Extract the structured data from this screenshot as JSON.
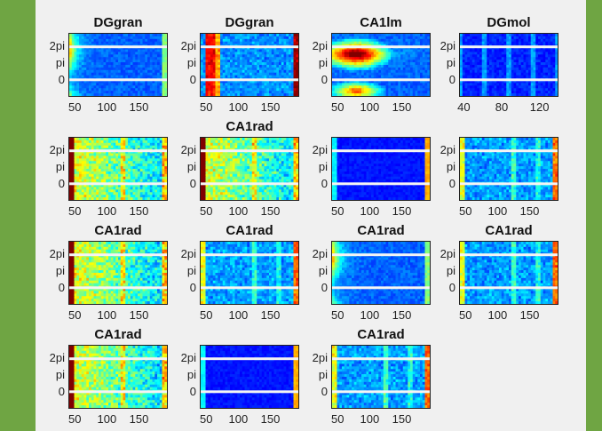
{
  "chart_data": [
    {
      "type": "heatmap",
      "title": "DGgran",
      "yticks": [
        "2pi",
        "pi",
        "0"
      ],
      "xticks": [
        "50",
        "100",
        "150"
      ],
      "xlim": [
        40,
        195
      ],
      "pattern": "left"
    },
    {
      "type": "heatmap",
      "title": "DGgran",
      "yticks": [
        "2pi",
        "pi",
        "0"
      ],
      "xticks": [
        "50",
        "100",
        "150"
      ],
      "xlim": [
        40,
        195
      ],
      "pattern": "stripes"
    },
    {
      "type": "heatmap",
      "title": "CA1lm",
      "yticks": [
        "2pi",
        "pi",
        "0"
      ],
      "xticks": [
        "50",
        "100",
        "150"
      ],
      "xlim": [
        40,
        195
      ],
      "pattern": "blob"
    },
    {
      "type": "heatmap",
      "title": "DGmol",
      "yticks": [
        "2pi",
        "pi",
        "0"
      ],
      "xticks": [
        "40",
        "80",
        "120"
      ],
      "xlim": [
        35,
        140
      ],
      "pattern": "faint"
    },
    {
      "type": "heatmap",
      "title": "",
      "yticks": [
        "2pi",
        "pi",
        "0"
      ],
      "xticks": [
        "50",
        "100",
        "150"
      ],
      "xlim": [
        40,
        195
      ],
      "pattern": "warm"
    },
    {
      "type": "heatmap",
      "title": "CA1rad",
      "yticks": [
        "2pi",
        "pi",
        "0"
      ],
      "xticks": [
        "50",
        "100",
        "150"
      ],
      "xlim": [
        40,
        195
      ],
      "pattern": "warm"
    },
    {
      "type": "heatmap",
      "title": "",
      "yticks": [
        "2pi",
        "pi",
        "0"
      ],
      "xticks": [
        "50",
        "100",
        "150"
      ],
      "xlim": [
        40,
        195
      ],
      "pattern": "dark"
    },
    {
      "type": "heatmap",
      "title": "",
      "yticks": [
        "2pi",
        "pi",
        "0"
      ],
      "xticks": [
        "50",
        "100",
        "150"
      ],
      "xlim": [
        40,
        195
      ],
      "pattern": "mid"
    },
    {
      "type": "heatmap",
      "title": "CA1rad",
      "yticks": [
        "2pi",
        "pi",
        "0"
      ],
      "xticks": [
        "50",
        "100",
        "150"
      ],
      "xlim": [
        40,
        195
      ],
      "pattern": "warm"
    },
    {
      "type": "heatmap",
      "title": "CA1rad",
      "yticks": [
        "2pi",
        "pi",
        "0"
      ],
      "xticks": [
        "50",
        "100",
        "150"
      ],
      "xlim": [
        40,
        195
      ],
      "pattern": "mid"
    },
    {
      "type": "heatmap",
      "title": "CA1rad",
      "yticks": [
        "2pi",
        "pi",
        "0"
      ],
      "xticks": [
        "50",
        "100",
        "150"
      ],
      "xlim": [
        40,
        195
      ],
      "pattern": "left"
    },
    {
      "type": "heatmap",
      "title": "CA1rad",
      "yticks": [
        "2pi",
        "pi",
        "0"
      ],
      "xticks": [
        "50",
        "100",
        "150"
      ],
      "xlim": [
        40,
        195
      ],
      "pattern": "mid"
    },
    {
      "type": "heatmap",
      "title": "CA1rad",
      "yticks": [
        "2pi",
        "pi",
        "0"
      ],
      "xticks": [
        "50",
        "100",
        "150"
      ],
      "xlim": [
        40,
        195
      ],
      "pattern": "warm"
    },
    {
      "type": "heatmap",
      "title": "",
      "yticks": [
        "2pi",
        "pi",
        "0"
      ],
      "xticks": [
        "50",
        "100",
        "150"
      ],
      "xlim": [
        40,
        195
      ],
      "pattern": "dark"
    },
    {
      "type": "heatmap",
      "title": "CA1rad",
      "yticks": [
        "2pi",
        "pi",
        "0"
      ],
      "xticks": [
        "50",
        "100",
        "150"
      ],
      "xlim": [
        40,
        195
      ],
      "pattern": "mid"
    }
  ],
  "colors": {
    "background": "#6fa543",
    "figure": "#f0f0f0",
    "colormap": "jet"
  }
}
